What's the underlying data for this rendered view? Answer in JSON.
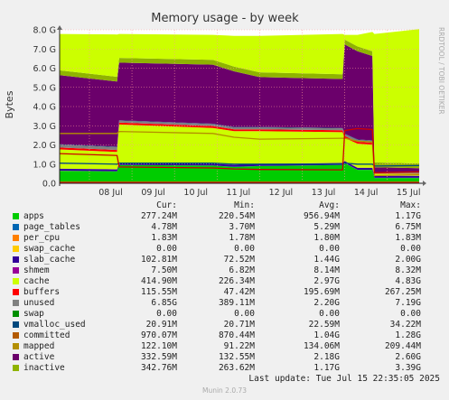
{
  "chart_data": {
    "type": "area",
    "title": "Memory usage - by week",
    "ylabel": "Bytes",
    "ylim": [
      0,
      8
    ],
    "yticks": [
      "0.0",
      "1.0 G",
      "2.0 G",
      "3.0 G",
      "4.0 G",
      "5.0 G",
      "6.0 G",
      "7.0 G",
      "8.0 G"
    ],
    "x_range": [
      7.3,
      15.75
    ],
    "x_ticks": [
      {
        "label": "08 Jul",
        "x": 8
      },
      {
        "label": "09 Jul",
        "x": 9
      },
      {
        "label": "10 Jul",
        "x": 10
      },
      {
        "label": "11 Jul",
        "x": 11
      },
      {
        "label": "12 Jul",
        "x": 12
      },
      {
        "label": "13 Jul",
        "x": 13
      },
      {
        "label": "14 Jul",
        "x": 14
      },
      {
        "label": "15 Jul",
        "x": 15
      }
    ],
    "breakpoints": [
      7.3,
      8.65,
      8.7,
      10.9,
      11.4,
      12.0,
      13.95,
      14.0,
      14.3,
      14.65,
      14.7,
      15.75
    ],
    "stack": [
      {
        "name": "apps",
        "color": "#00cc00",
        "values": [
          0.65,
          0.62,
          0.95,
          0.92,
          0.85,
          0.9,
          0.95,
          1.05,
          0.7,
          0.7,
          0.28,
          0.28
        ]
      },
      {
        "name": "page_tables",
        "color": "#0066b3",
        "values": [
          0.005,
          0.005,
          0.005,
          0.005,
          0.005,
          0.005,
          0.005,
          0.005,
          0.005,
          0.005,
          0.005,
          0.005
        ]
      },
      {
        "name": "per_cpu",
        "color": "#ff8000",
        "values": [
          0.002,
          0.002,
          0.002,
          0.002,
          0.002,
          0.002,
          0.002,
          0.002,
          0.002,
          0.002,
          0.002,
          0.002
        ]
      },
      {
        "name": "swap_cache",
        "color": "#ffcc00",
        "values": [
          0,
          0,
          0,
          0,
          0,
          0,
          0,
          0,
          0,
          0,
          0,
          0
        ]
      },
      {
        "name": "slab_cache",
        "color": "#330099",
        "values": [
          0.1,
          0.1,
          0.1,
          0.1,
          0.1,
          0.1,
          0.1,
          0.1,
          0.1,
          0.1,
          0.1,
          0.1
        ]
      },
      {
        "name": "shmem",
        "color": "#990099",
        "values": [
          0.008,
          0.008,
          0.008,
          0.008,
          0.008,
          0.008,
          0.008,
          0.008,
          0.008,
          0.008,
          0.008,
          0.008
        ]
      },
      {
        "name": "cache",
        "color": "#ccff00",
        "values": [
          1.0,
          0.9,
          2.0,
          1.85,
          1.75,
          1.7,
          1.6,
          1.2,
          1.25,
          1.2,
          0.1,
          0.1
        ]
      },
      {
        "name": "buffers",
        "color": "#ff0000",
        "values": [
          0.1,
          0.1,
          0.1,
          0.1,
          0.1,
          0.1,
          0.1,
          0.1,
          0.1,
          0.1,
          0.02,
          0.02
        ]
      },
      {
        "name": "unused",
        "color": "#808080",
        "values": [
          0.15,
          0.15,
          0.1,
          0.1,
          0.1,
          0.1,
          0.1,
          0.1,
          0.1,
          0.1,
          0.05,
          0.05
        ]
      },
      {
        "name": "swap",
        "color": "#008f00",
        "values": [
          0,
          0,
          0,
          0,
          0,
          0,
          0,
          0,
          0,
          0,
          0,
          0
        ]
      },
      {
        "name": "vmalloc_used",
        "color": "#00487d",
        "values": [
          0.02,
          0.02,
          0.02,
          0.02,
          0.02,
          0.02,
          0.02,
          0.02,
          0.02,
          0.02,
          0.02,
          0.02
        ]
      },
      {
        "name": "committed",
        "color": "#b35a00",
        "values": [
          0,
          0,
          0,
          0,
          0,
          0,
          0,
          0,
          0,
          0,
          0,
          0
        ]
      },
      {
        "name": "mapped",
        "color": "#b38f00",
        "values": [
          0,
          0,
          0,
          0,
          0,
          0,
          0,
          0,
          0,
          0,
          0,
          0
        ]
      },
      {
        "name": "active",
        "color": "#6b006b",
        "values": [
          3.6,
          3.4,
          3.0,
          3.08,
          2.9,
          2.6,
          2.55,
          4.65,
          4.6,
          4.4,
          0.25,
          0.2
        ]
      },
      {
        "name": "inactive",
        "color": "#8fb300",
        "values": [
          0.25,
          0.25,
          0.25,
          0.25,
          0.25,
          0.25,
          0.25,
          0.25,
          0.25,
          0.25,
          0.25,
          0.25
        ]
      },
      {
        "name": "unused",
        "color": "#ccff00",
        "values": [
          1.9,
          2.2,
          1.25,
          1.3,
          1.6,
          1.9,
          2.1,
          0.25,
          0.6,
          1.0,
          6.7,
          7.0
        ]
      }
    ],
    "lines": [
      {
        "name": "committed",
        "color": "#00487d",
        "values": [
          1.05,
          1.0,
          1.05,
          1.05,
          1.0,
          1.0,
          1.0,
          1.05,
          1.0,
          1.0,
          0.9,
          0.92
        ]
      },
      {
        "name": "mapped",
        "color": "#b35a00",
        "values": [
          0.07,
          0.07,
          0.07,
          0.07,
          0.07,
          0.07,
          0.07,
          0.07,
          0.07,
          0.07,
          0.07,
          0.07
        ]
      },
      {
        "name": "active",
        "color": "#b38f00",
        "values": [
          2.6,
          2.6,
          2.7,
          2.6,
          2.4,
          2.3,
          2.35,
          2.35,
          2.2,
          2.15,
          0.4,
          0.45
        ]
      },
      {
        "name": "inactive",
        "color": "#cc0000",
        "values": [
          1.55,
          1.45,
          0.85,
          0.8,
          0.75,
          0.72,
          0.7,
          2.75,
          2.85,
          2.8,
          0.55,
          0.6
        ]
      },
      {
        "name": "swap",
        "color": "#cc0000",
        "values": [
          0.02,
          0.02,
          0.02,
          0.02,
          0.02,
          0.02,
          0.02,
          0.02,
          0.02,
          0.02,
          0.02,
          0.02
        ]
      }
    ]
  },
  "side_label": "RRDTOOL / TOBI OETIKER",
  "legend": {
    "headers": [
      "Cur:",
      "Min:",
      "Avg:",
      "Max:"
    ],
    "rows": [
      {
        "name": "apps",
        "color": "#00cc00",
        "cur": "277.24M",
        "min": "220.54M",
        "avg": "956.94M",
        "max": "1.17G"
      },
      {
        "name": "page_tables",
        "color": "#0066b3",
        "cur": "4.78M",
        "min": "3.70M",
        "avg": "5.29M",
        "max": "6.75M"
      },
      {
        "name": "per_cpu",
        "color": "#ff8000",
        "cur": "1.83M",
        "min": "1.78M",
        "avg": "1.80M",
        "max": "1.83M"
      },
      {
        "name": "swap_cache",
        "color": "#ffcc00",
        "cur": "0.00",
        "min": "0.00",
        "avg": "0.00",
        "max": "0.00"
      },
      {
        "name": "slab_cache",
        "color": "#330099",
        "cur": "102.81M",
        "min": "72.52M",
        "avg": "1.44G",
        "max": "2.00G"
      },
      {
        "name": "shmem",
        "color": "#990099",
        "cur": "7.50M",
        "min": "6.82M",
        "avg": "8.14M",
        "max": "8.32M"
      },
      {
        "name": "cache",
        "color": "#ccff00",
        "cur": "414.90M",
        "min": "226.34M",
        "avg": "2.97G",
        "max": "4.83G"
      },
      {
        "name": "buffers",
        "color": "#ff0000",
        "cur": "115.55M",
        "min": "47.42M",
        "avg": "195.69M",
        "max": "267.25M"
      },
      {
        "name": "unused",
        "color": "#808080",
        "cur": "6.85G",
        "min": "389.11M",
        "avg": "2.20G",
        "max": "7.19G"
      },
      {
        "name": "swap",
        "color": "#008f00",
        "cur": "0.00",
        "min": "0.00",
        "avg": "0.00",
        "max": "0.00"
      },
      {
        "name": "vmalloc_used",
        "color": "#00487d",
        "cur": "20.91M",
        "min": "20.71M",
        "avg": "22.59M",
        "max": "34.22M"
      },
      {
        "name": "committed",
        "color": "#b35a00",
        "cur": "970.07M",
        "min": "870.44M",
        "avg": "1.04G",
        "max": "1.28G"
      },
      {
        "name": "mapped",
        "color": "#b38f00",
        "cur": "122.10M",
        "min": "91.22M",
        "avg": "134.06M",
        "max": "209.44M"
      },
      {
        "name": "active",
        "color": "#6b006b",
        "cur": "332.59M",
        "min": "132.55M",
        "avg": "2.18G",
        "max": "2.60G"
      },
      {
        "name": "inactive",
        "color": "#8fb300",
        "cur": "342.76M",
        "min": "263.62M",
        "avg": "1.17G",
        "max": "3.39G"
      }
    ]
  },
  "last_update": "Last update: Tue Jul 15 22:35:05 2025",
  "munin_version": "Munin 2.0.73"
}
